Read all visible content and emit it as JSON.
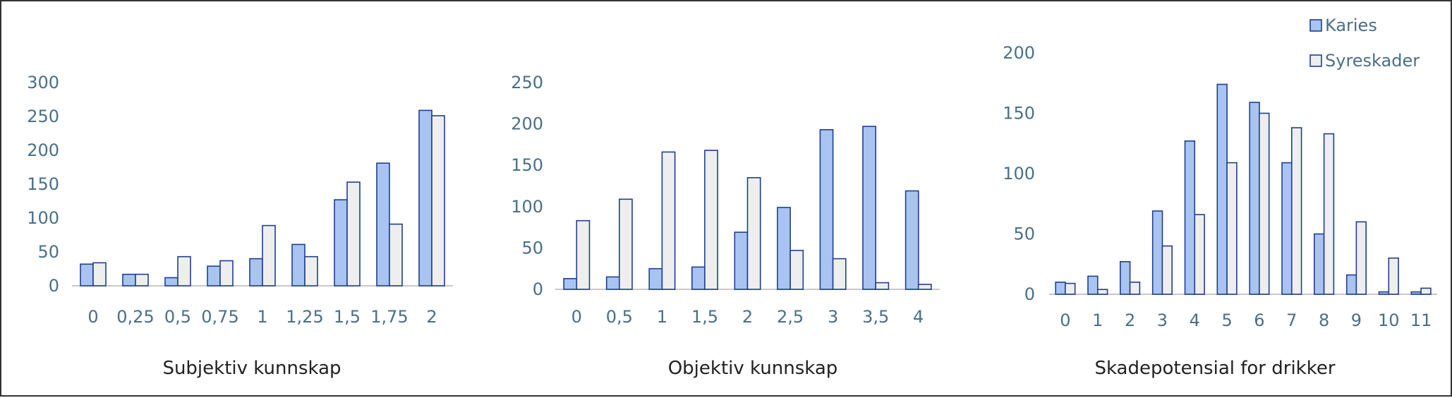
{
  "chart_data": [
    {
      "type": "bar",
      "xlabel": "Subjektiv kunnskap",
      "ylabel": "",
      "ylim": [
        0,
        300
      ],
      "yticks": [
        0,
        50,
        100,
        150,
        200,
        250,
        300
      ],
      "categories": [
        "0",
        "0,25",
        "0,5",
        "0,75",
        "1",
        "1,25",
        "1,5",
        "1,75",
        "2"
      ],
      "series": [
        {
          "name": "Karies",
          "values": [
            32,
            17,
            12,
            29,
            40,
            61,
            127,
            181,
            259
          ]
        },
        {
          "name": "Syreskader",
          "values": [
            34,
            17,
            43,
            37,
            89,
            43,
            153,
            91,
            251
          ]
        }
      ],
      "legend": "none"
    },
    {
      "type": "bar",
      "xlabel": "Objektiv kunnskap",
      "ylabel": "",
      "ylim": [
        0,
        250
      ],
      "yticks": [
        0,
        50,
        100,
        150,
        200,
        250
      ],
      "categories": [
        "0",
        "0,5",
        "1",
        "1,5",
        "2",
        "2,5",
        "3",
        "3,5",
        "4"
      ],
      "series": [
        {
          "name": "Karies",
          "values": [
            13,
            15,
            25,
            27,
            69,
            99,
            193,
            197,
            119
          ]
        },
        {
          "name": "Syreskader",
          "values": [
            83,
            109,
            166,
            168,
            135,
            47,
            37,
            8,
            6
          ]
        }
      ],
      "legend": "none"
    },
    {
      "type": "bar",
      "xlabel": "Skadepotensial for drikker",
      "ylabel": "",
      "ylim": [
        0,
        200
      ],
      "yticks": [
        0,
        50,
        100,
        150,
        200
      ],
      "categories": [
        "0",
        "1",
        "2",
        "3",
        "4",
        "5",
        "6",
        "7",
        "8",
        "9",
        "10",
        "11"
      ],
      "series": [
        {
          "name": "Karies",
          "values": [
            10,
            15,
            27,
            69,
            127,
            174,
            159,
            109,
            50,
            16,
            2,
            2
          ]
        },
        {
          "name": "Syreskader",
          "values": [
            9,
            4,
            10,
            40,
            66,
            109,
            150,
            138,
            133,
            60,
            30,
            5
          ]
        }
      ],
      "legend": "top-right"
    }
  ],
  "colors": {
    "karies_fill": "#a9c4f0",
    "karies_stroke": "#1f3f8f",
    "syreskader_fill": "#eeeeee",
    "syreskader_stroke": "#1f3f8f",
    "axis": "#c8c8c8",
    "tick_text": "#4a6f8a"
  }
}
